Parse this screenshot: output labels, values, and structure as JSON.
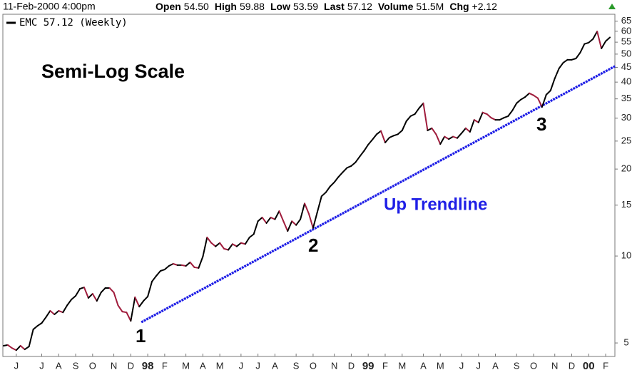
{
  "header": {
    "date": "11-Feb-2000 4:00pm",
    "fields": [
      {
        "label": "Open",
        "value": "54.50"
      },
      {
        "label": "High",
        "value": "59.88"
      },
      {
        "label": "Low",
        "value": "53.59"
      },
      {
        "label": "Last",
        "value": "57.12"
      },
      {
        "label": "Volume",
        "value": "51.5M"
      },
      {
        "label": "Chg",
        "value": "+2.12"
      }
    ]
  },
  "chart_data": {
    "type": "line",
    "title": "Semi-Log Scale",
    "log_scale": true,
    "grid": false,
    "categories": [
      null,
      null,
      null,
      "J",
      null,
      null,
      null,
      null,
      null,
      "J",
      null,
      null,
      null,
      "A",
      null,
      null,
      null,
      "S",
      null,
      null,
      null,
      "O",
      null,
      null,
      null,
      null,
      "N",
      null,
      null,
      null,
      "D",
      null,
      null,
      null,
      "98",
      null,
      null,
      null,
      "F",
      null,
      null,
      null,
      null,
      "M",
      null,
      null,
      null,
      "A",
      null,
      null,
      null,
      "M",
      null,
      null,
      null,
      null,
      "J",
      null,
      null,
      null,
      "J",
      null,
      null,
      null,
      "A",
      null,
      null,
      null,
      null,
      "S",
      null,
      null,
      null,
      "O",
      null,
      null,
      null,
      null,
      "N",
      null,
      null,
      null,
      "D",
      null,
      null,
      null,
      "99",
      null,
      null,
      null,
      "F",
      null,
      null,
      null,
      "M",
      null,
      null,
      null,
      null,
      "A",
      null,
      null,
      null,
      "M",
      null,
      null,
      null,
      null,
      "J",
      null,
      null,
      null,
      "J",
      null,
      null,
      null,
      "A",
      null,
      null,
      null,
      null,
      "S",
      null,
      null,
      null,
      "O",
      null,
      null,
      null,
      null,
      "N",
      null,
      null,
      null,
      "D",
      null,
      null,
      null,
      "00",
      null,
      null,
      null,
      "F",
      null
    ],
    "series": [
      {
        "name": "EMC 57.12 (Weekly)",
        "color": "#000000",
        "down_color": "#a01c3c",
        "values": [
          4.89,
          4.92,
          4.8,
          4.72,
          4.89,
          4.75,
          4.86,
          5.57,
          5.73,
          5.86,
          6.14,
          6.46,
          6.28,
          6.46,
          6.38,
          6.75,
          7.07,
          7.28,
          7.7,
          7.79,
          7.16,
          7.4,
          6.99,
          7.48,
          7.75,
          7.75,
          7.48,
          6.75,
          6.42,
          6.38,
          5.96,
          7.2,
          6.68,
          6.99,
          7.24,
          8.16,
          8.53,
          8.88,
          8.98,
          9.24,
          9.4,
          9.3,
          9.3,
          9.24,
          9.51,
          9.14,
          9.09,
          9.95,
          11.6,
          11.1,
          10.8,
          11.1,
          10.6,
          10.5,
          11.0,
          10.8,
          11.1,
          11.0,
          11.6,
          11.9,
          13.2,
          13.6,
          13.0,
          13.6,
          13.4,
          14.3,
          13.2,
          12.2,
          13.2,
          12.8,
          13.4,
          15.2,
          14.0,
          12.5,
          14.2,
          16.1,
          16.6,
          17.4,
          18.0,
          18.8,
          19.5,
          20.2,
          20.5,
          21.1,
          22.1,
          23.1,
          24.3,
          25.3,
          26.4,
          27.1,
          24.7,
          25.7,
          26.1,
          26.4,
          27.2,
          29.3,
          30.5,
          31.0,
          32.5,
          33.8,
          27.2,
          27.7,
          26.4,
          24.4,
          25.9,
          25.4,
          25.9,
          25.6,
          26.6,
          27.7,
          26.9,
          29.6,
          29.0,
          31.4,
          31.0,
          30.1,
          29.6,
          29.6,
          30.1,
          30.5,
          31.9,
          33.8,
          34.8,
          35.5,
          36.6,
          36.0,
          35.2,
          32.8,
          36.2,
          37.4,
          41.2,
          44.6,
          46.7,
          47.8,
          47.8,
          48.3,
          50.6,
          54.2,
          54.8,
          56.4,
          59.9,
          52.3,
          55.4,
          57.12
        ]
      }
    ],
    "ylim": [
      4.49,
      68.7
    ],
    "yticks": [
      5,
      10,
      15,
      20,
      25,
      30,
      35,
      40,
      45,
      50,
      55,
      60,
      65
    ],
    "trendline": {
      "name": "Up Trendline",
      "color": "#1f1fe6",
      "start": {
        "index": 32.5,
        "value": 5.9
      },
      "end": {
        "index": 144.2,
        "value": 45.4
      }
    },
    "annotations": [
      "1",
      "2",
      "3"
    ]
  }
}
